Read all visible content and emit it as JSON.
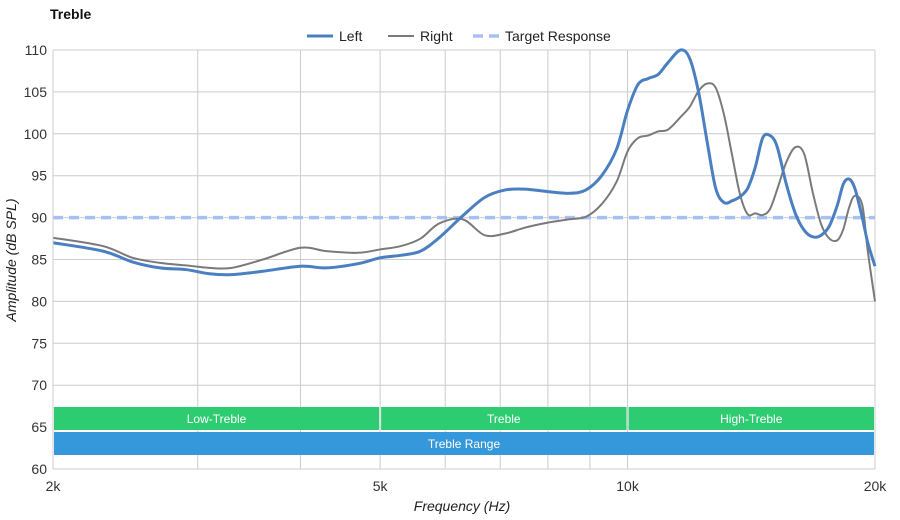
{
  "chart_data": {
    "type": "line",
    "title": "Treble",
    "xlabel": "Frequency (Hz)",
    "ylabel": "Amplitude (dB SPL)",
    "x_scale": "log",
    "xlim": [
      2000,
      20000
    ],
    "ylim": [
      60,
      110
    ],
    "x_ticks": [
      {
        "value": 2000,
        "label": "2k"
      },
      {
        "value": 5000,
        "label": "5k"
      },
      {
        "value": 10000,
        "label": "10k"
      },
      {
        "value": 20000,
        "label": "20k"
      }
    ],
    "x_minor_gridlines": [
      3000,
      4000,
      6000,
      7000,
      8000,
      9000
    ],
    "y_ticks": [
      60,
      65,
      70,
      75,
      80,
      85,
      90,
      95,
      100,
      105,
      110
    ],
    "grid": true,
    "legend_position": "top-center",
    "series": [
      {
        "name": "Left",
        "color": "#4a7fc1",
        "style": "solid",
        "points": [
          [
            2000,
            87.0
          ],
          [
            2300,
            86.0
          ],
          [
            2500,
            84.7
          ],
          [
            2700,
            84.0
          ],
          [
            2900,
            83.8
          ],
          [
            3100,
            83.3
          ],
          [
            3300,
            83.2
          ],
          [
            3600,
            83.6
          ],
          [
            4000,
            84.2
          ],
          [
            4300,
            84.0
          ],
          [
            4700,
            84.5
          ],
          [
            5000,
            85.2
          ],
          [
            5300,
            85.5
          ],
          [
            5600,
            86.0
          ],
          [
            5900,
            87.6
          ],
          [
            6300,
            90.2
          ],
          [
            6700,
            92.4
          ],
          [
            7100,
            93.3
          ],
          [
            7500,
            93.4
          ],
          [
            8000,
            93.1
          ],
          [
            8500,
            92.9
          ],
          [
            8900,
            93.3
          ],
          [
            9300,
            95.0
          ],
          [
            9700,
            98.2
          ],
          [
            10000,
            102.8
          ],
          [
            10300,
            105.9
          ],
          [
            10600,
            106.6
          ],
          [
            10900,
            107.1
          ],
          [
            11200,
            108.5
          ],
          [
            11600,
            110.0
          ],
          [
            11900,
            109.0
          ],
          [
            12200,
            105.0
          ],
          [
            12500,
            99.0
          ],
          [
            12800,
            93.5
          ],
          [
            13100,
            91.8
          ],
          [
            13400,
            92.0
          ],
          [
            13700,
            92.5
          ],
          [
            14000,
            93.5
          ],
          [
            14300,
            96.0
          ],
          [
            14600,
            99.5
          ],
          [
            14900,
            99.8
          ],
          [
            15200,
            98.5
          ],
          [
            15600,
            94.0
          ],
          [
            16000,
            90.5
          ],
          [
            16400,
            88.5
          ],
          [
            16800,
            87.7
          ],
          [
            17200,
            87.9
          ],
          [
            17600,
            89.0
          ],
          [
            18000,
            91.5
          ],
          [
            18300,
            94.0
          ],
          [
            18600,
            94.6
          ],
          [
            18900,
            93.5
          ],
          [
            19300,
            90.0
          ],
          [
            19600,
            87.0
          ],
          [
            20000,
            84.2
          ]
        ]
      },
      {
        "name": "Right",
        "color": "#7a7a7a",
        "style": "solid",
        "points": [
          [
            2000,
            87.6
          ],
          [
            2300,
            86.6
          ],
          [
            2500,
            85.2
          ],
          [
            2700,
            84.6
          ],
          [
            2900,
            84.3
          ],
          [
            3100,
            84.0
          ],
          [
            3300,
            84.0
          ],
          [
            3600,
            85.0
          ],
          [
            4000,
            86.4
          ],
          [
            4300,
            86.0
          ],
          [
            4700,
            85.8
          ],
          [
            5000,
            86.2
          ],
          [
            5300,
            86.6
          ],
          [
            5600,
            87.5
          ],
          [
            5900,
            89.3
          ],
          [
            6300,
            89.8
          ],
          [
            6700,
            87.9
          ],
          [
            7100,
            88.1
          ],
          [
            7500,
            88.8
          ],
          [
            8000,
            89.4
          ],
          [
            8500,
            89.8
          ],
          [
            8900,
            90.1
          ],
          [
            9300,
            91.6
          ],
          [
            9700,
            94.3
          ],
          [
            10000,
            97.9
          ],
          [
            10300,
            99.5
          ],
          [
            10600,
            99.8
          ],
          [
            10900,
            100.3
          ],
          [
            11200,
            100.5
          ],
          [
            11600,
            102.0
          ],
          [
            11900,
            103.2
          ],
          [
            12200,
            105.1
          ],
          [
            12500,
            106.0
          ],
          [
            12800,
            105.5
          ],
          [
            13100,
            102.3
          ],
          [
            13400,
            97.5
          ],
          [
            13700,
            92.8
          ],
          [
            14000,
            90.4
          ],
          [
            14300,
            90.5
          ],
          [
            14600,
            90.3
          ],
          [
            14900,
            91.0
          ],
          [
            15200,
            93.3
          ],
          [
            15600,
            96.6
          ],
          [
            16000,
            98.4
          ],
          [
            16400,
            97.6
          ],
          [
            16800,
            93.0
          ],
          [
            17200,
            89.2
          ],
          [
            17600,
            87.5
          ],
          [
            18000,
            87.3
          ],
          [
            18300,
            88.6
          ],
          [
            18600,
            91.2
          ],
          [
            18900,
            92.6
          ],
          [
            19300,
            91.5
          ],
          [
            19600,
            86.0
          ],
          [
            20000,
            80.0
          ]
        ]
      },
      {
        "name": "Target Response",
        "color": "#a9c0f5",
        "style": "dashed",
        "points": [
          [
            2000,
            90
          ],
          [
            20000,
            90
          ]
        ]
      }
    ],
    "bands": [
      {
        "label": "Low-Treble",
        "from": 2000,
        "to": 5000,
        "color": "#2ecc71",
        "row": 1
      },
      {
        "label": "Treble",
        "from": 5000,
        "to": 10000,
        "color": "#2ecc71",
        "row": 1
      },
      {
        "label": "High-Treble",
        "from": 10000,
        "to": 20000,
        "color": "#2ecc71",
        "row": 1
      },
      {
        "label": "Treble Range",
        "from": 2000,
        "to": 20000,
        "color": "#3498db",
        "row": 2
      }
    ]
  }
}
